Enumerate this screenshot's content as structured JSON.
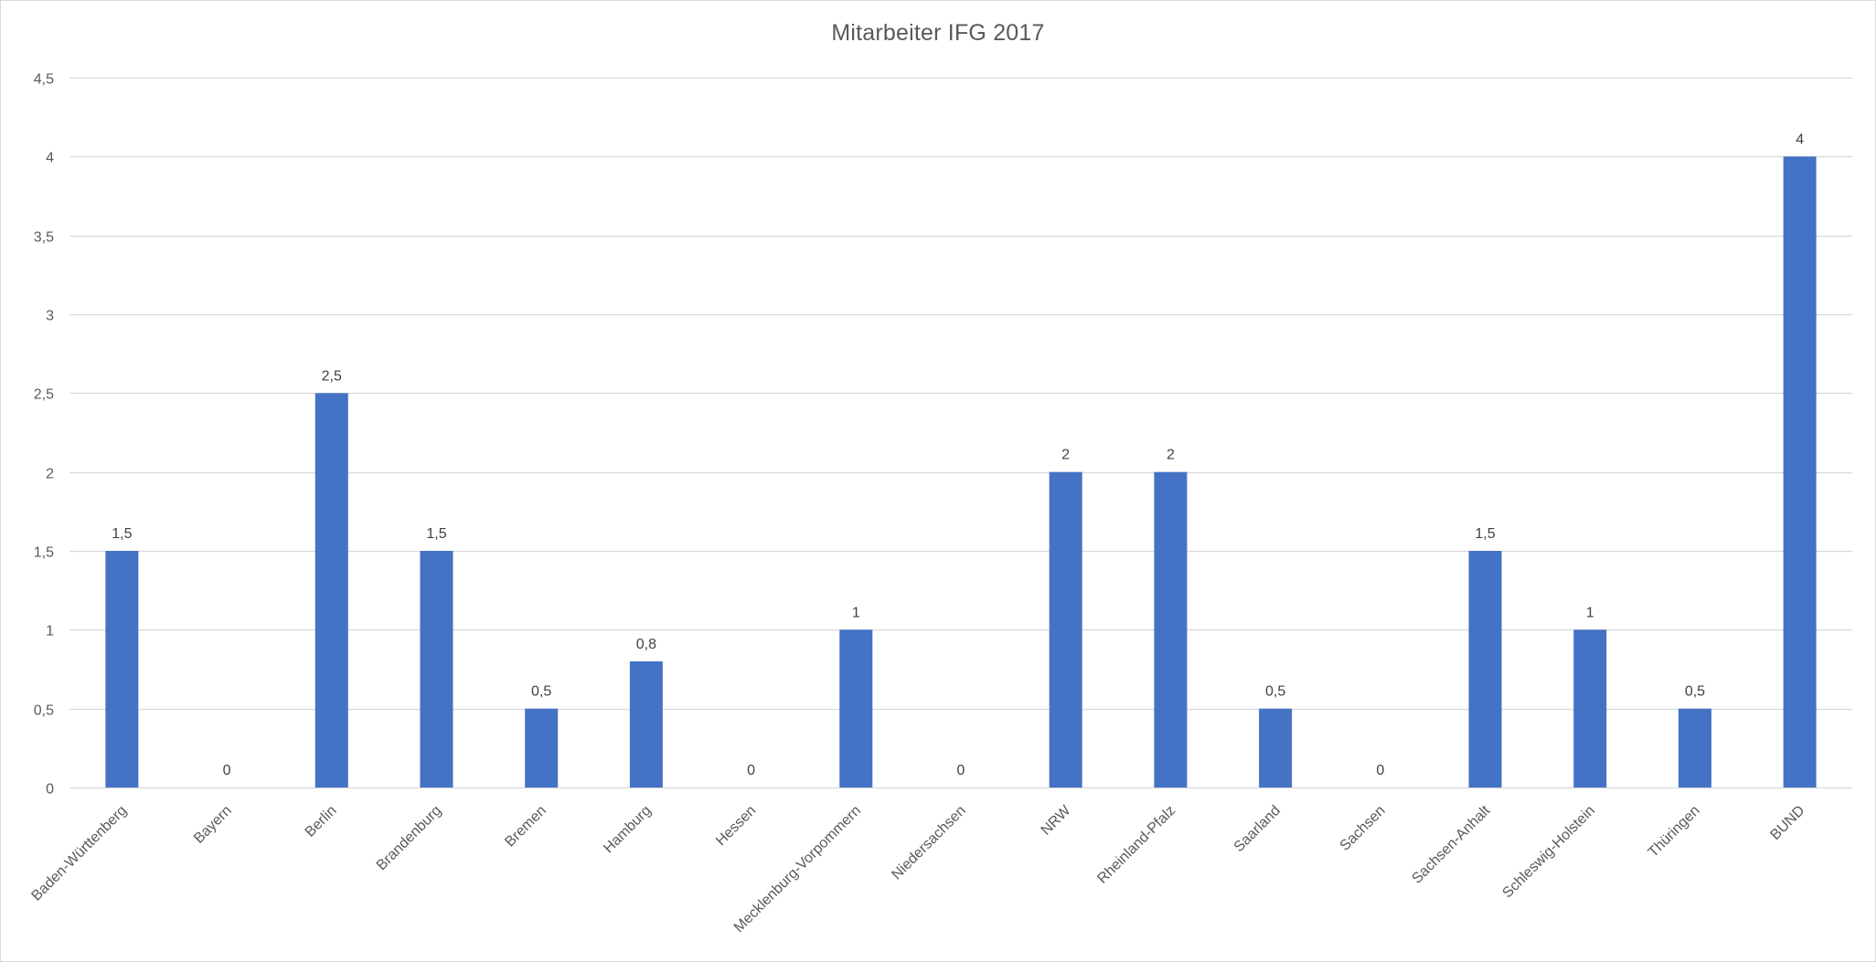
{
  "chart_data": {
    "type": "bar",
    "title": "Mitarbeiter IFG 2017",
    "xlabel": "",
    "ylabel": "",
    "categories": [
      "Baden-Württenberg",
      "Bayern",
      "Berlin",
      "Brandenburg",
      "Bremen",
      "Hamburg",
      "Hessen",
      "Mecklenburg-Vorpommern",
      "Niedersachsen",
      "NRW",
      "Rheinland-Pfalz",
      "Saarland",
      "Sachsen",
      "Sachsen-Anhalt",
      "Schleswig-Holstein",
      "Thüringen",
      "BUND"
    ],
    "values": [
      1.5,
      0,
      2.5,
      1.5,
      0.5,
      0.8,
      0,
      1,
      0,
      2,
      2,
      0.5,
      0,
      1.5,
      1,
      0.5,
      4
    ],
    "data_labels": [
      "1,5",
      "0",
      "2,5",
      "1,5",
      "0,5",
      "0,8",
      "0",
      "1",
      "0",
      "2",
      "2",
      "0,5",
      "0",
      "1,5",
      "1",
      "0,5",
      "4"
    ],
    "ylim": [
      0,
      4.5
    ],
    "y_ticks": [
      0,
      0.5,
      1,
      1.5,
      2,
      2.5,
      3,
      3.5,
      4,
      4.5
    ],
    "y_tick_labels": [
      "0",
      "0,5",
      "1",
      "1,5",
      "2",
      "2,5",
      "3",
      "3,5",
      "4",
      "4,5"
    ],
    "grid": true,
    "legend": "none",
    "bar_color": "#4472C4",
    "grid_color": "#d9d9d9"
  }
}
